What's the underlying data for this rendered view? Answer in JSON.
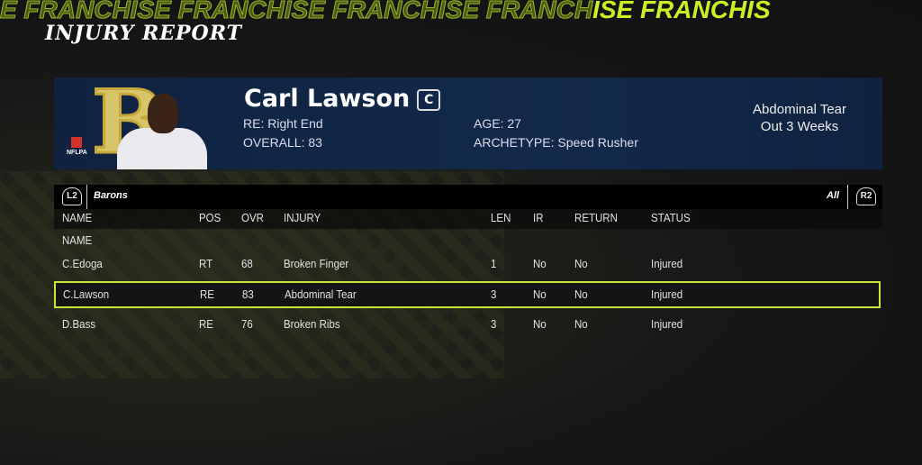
{
  "ticker": [
    "E FRANCHISE ",
    "FRANCHISE ",
    "FRANCHISE ",
    "FRANCH",
    "ISE FRANCHIS"
  ],
  "page_title": "INJURY REPORT",
  "player": {
    "name": "Carl Lawson",
    "captain_badge": "C",
    "position": "RE:  Right End",
    "overall": "OVERALL:  83",
    "age": "AGE:  27",
    "archetype": "ARCHETYPE:  Speed Rusher",
    "injury": "Abdominal Tear",
    "duration": "Out 3 Weeks",
    "logo_text": "B",
    "nflpa": "NFLPA"
  },
  "team_bar": {
    "left_button": "L2",
    "team": "Barons",
    "filter": "All",
    "right_button": "R2"
  },
  "columns": [
    "NAME",
    "POS",
    "OVR",
    "INJURY",
    "LEN",
    "IR",
    "RETURN",
    "STATUS"
  ],
  "sort_label": "NAME",
  "rows": [
    {
      "name": "C.Edoga",
      "pos": "RT",
      "ovr": "68",
      "injury": "Broken Finger",
      "len": "1",
      "ir": "No",
      "return": "No",
      "status": "Injured"
    },
    {
      "name": "C.Lawson",
      "pos": "RE",
      "ovr": "83",
      "injury": "Abdominal Tear",
      "len": "3",
      "ir": "No",
      "return": "No",
      "status": "Injured",
      "selected": true
    },
    {
      "name": "D.Bass",
      "pos": "RE",
      "ovr": "76",
      "injury": "Broken Ribs",
      "len": "3",
      "ir": "No",
      "return": "No",
      "status": "Injured"
    }
  ],
  "colors": {
    "accent": "#c6e63a",
    "banner": "#13294a"
  }
}
